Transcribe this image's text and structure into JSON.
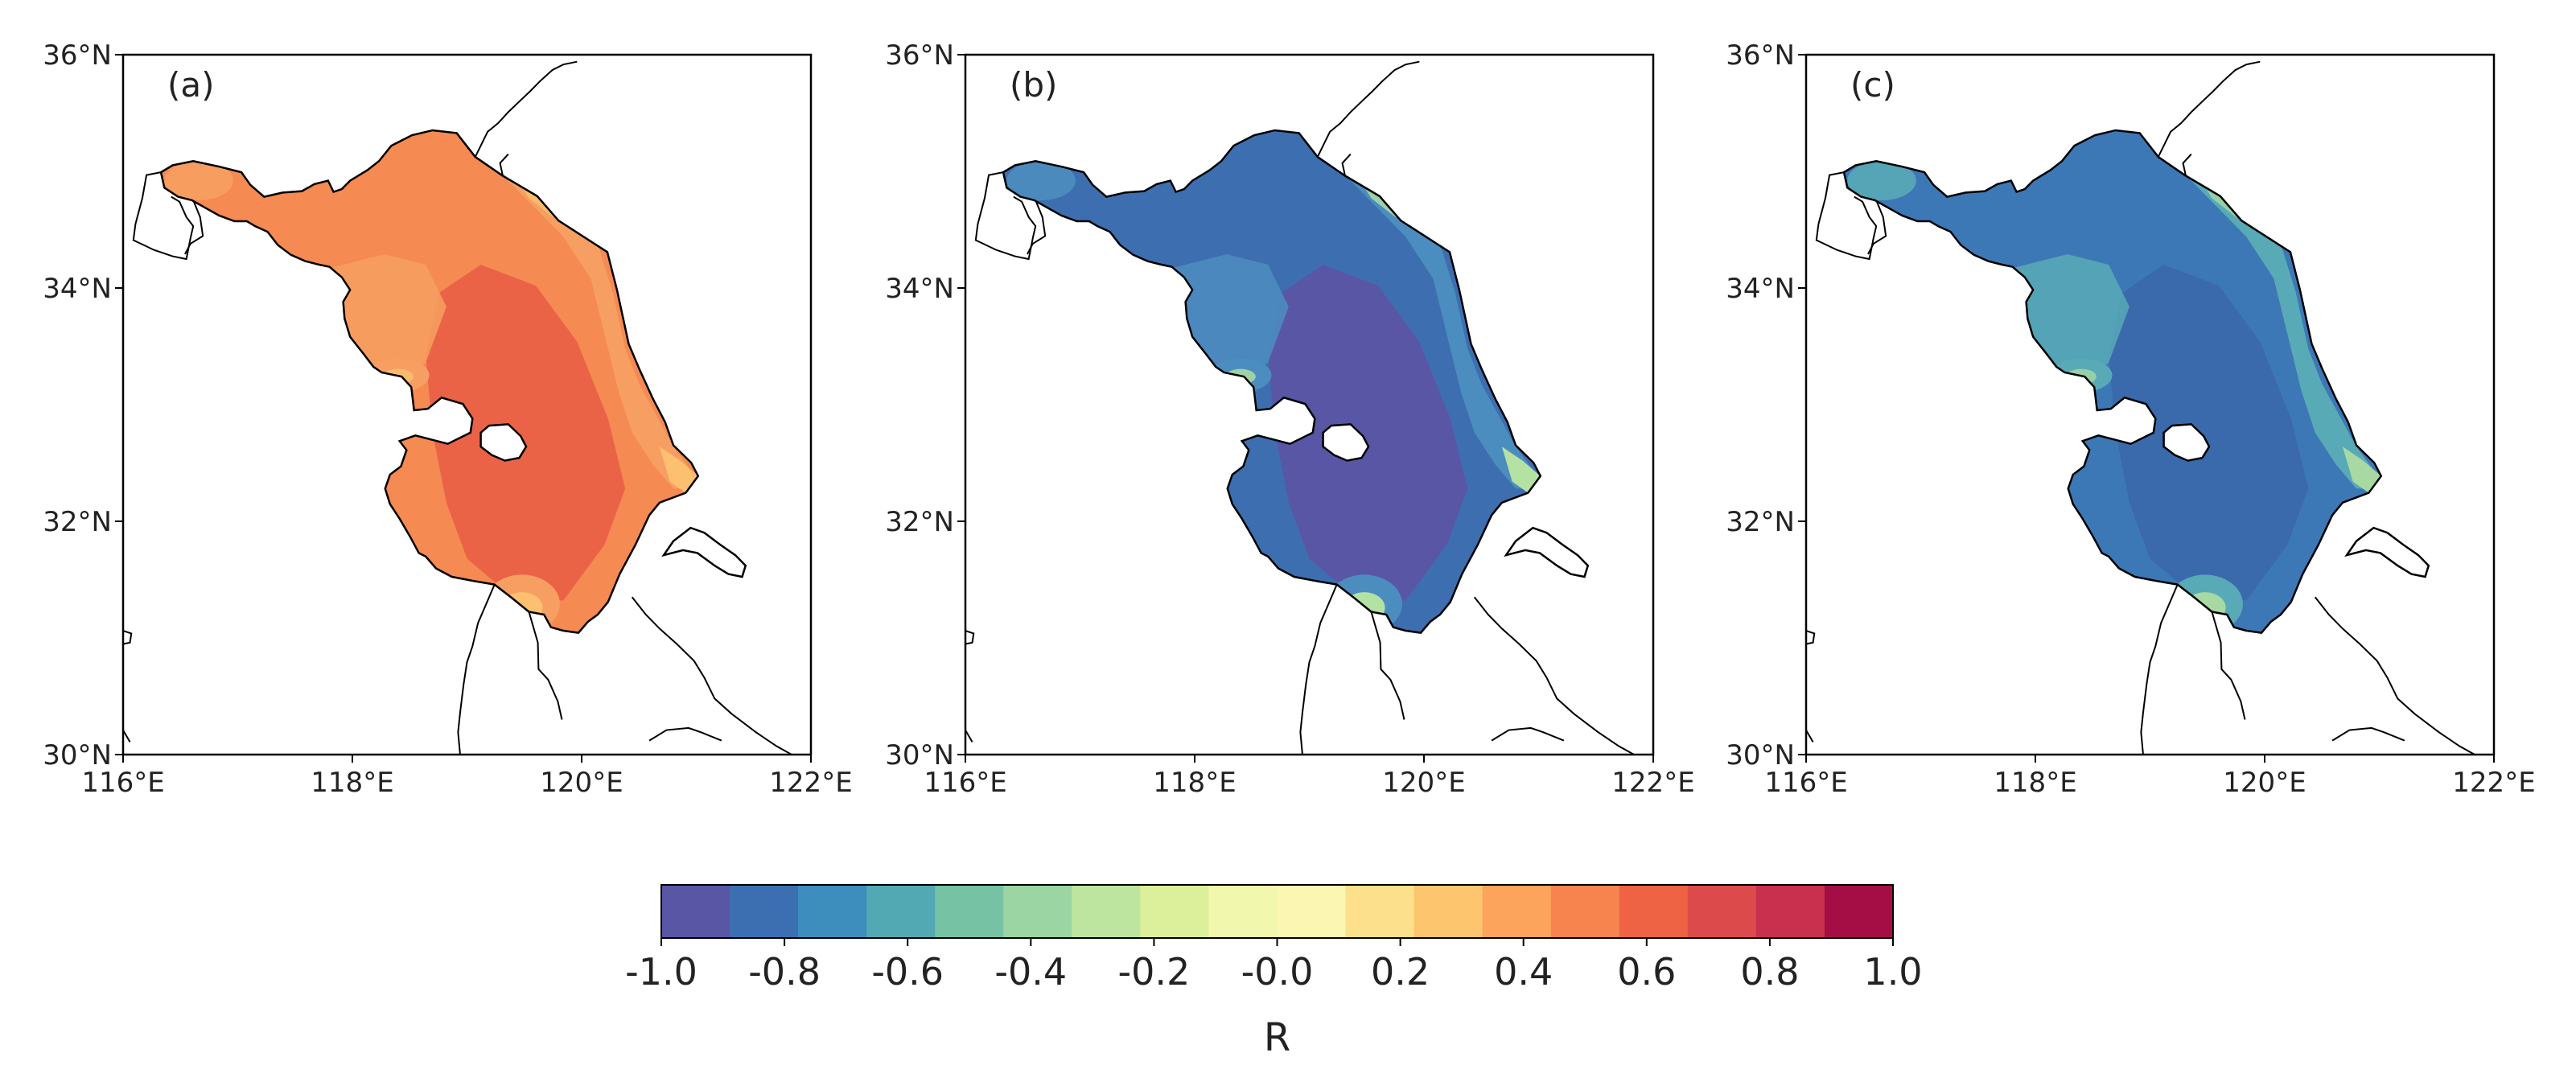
{
  "figure": {
    "panels": [
      {
        "tag": "(a)",
        "palette_key": "a"
      },
      {
        "tag": "(b)",
        "palette_key": "b"
      },
      {
        "tag": "(c)",
        "palette_key": "c"
      }
    ],
    "lat_ticks": [
      "36°N",
      "34°N",
      "32°N",
      "30°N"
    ],
    "lon_ticks": [
      "116°E",
      "118°E",
      "120°E",
      "122°E"
    ]
  },
  "colorbar": {
    "title": "R",
    "range": [
      -1.0,
      1.0
    ],
    "tick_labels": [
      "-1.0",
      "-0.8",
      "-0.6",
      "-0.4",
      "-0.2",
      "-0.0",
      "0.2",
      "0.4",
      "0.6",
      "0.8",
      "1.0"
    ],
    "colors": [
      "#5956a6",
      "#3c6fb1",
      "#3d8dbd",
      "#53a9b3",
      "#75c3a4",
      "#9ad5a3",
      "#bee5a0",
      "#dcef9a",
      "#f1f7ac",
      "#fcf6b3",
      "#fde08b",
      "#fdc56d",
      "#fca45c",
      "#f7844f",
      "#ee6344",
      "#dd4a4b",
      "#c9304d",
      "#a50e45"
    ]
  },
  "chart_data": {
    "type": "heatmap",
    "title": "",
    "xlabel": "",
    "ylabel": "",
    "xlim": [
      116,
      122
    ],
    "ylim": [
      30,
      36
    ],
    "colorbar_label": "R",
    "colorbar_range": [
      -1.0,
      1.0
    ],
    "panels": [
      {
        "label": "(a)",
        "region_fill": "#f58a52",
        "dominant_R": [
          0.5,
          0.7
        ]
      },
      {
        "label": "(b)",
        "region_fill": "#3d6fb0",
        "dominant_R": [
          -1.0,
          -0.6
        ]
      },
      {
        "label": "(c)",
        "region_fill": "#3d78b6",
        "dominant_R": [
          -0.9,
          -0.6
        ]
      }
    ]
  },
  "palettes": {
    "a": {
      "base": "#f58a52",
      "zone1": "#ea6347",
      "zone2": "#f79f62",
      "light": "#fdc070"
    },
    "b": {
      "base": "#3d6fb0",
      "zone1": "#5956a6",
      "zone2": "#4c8dbf",
      "light": "#b4e2a2"
    },
    "c": {
      "base": "#3d78b6",
      "zone1": "#3a69ac",
      "zone2": "#58aab6",
      "light": "#a8d9a3"
    }
  }
}
